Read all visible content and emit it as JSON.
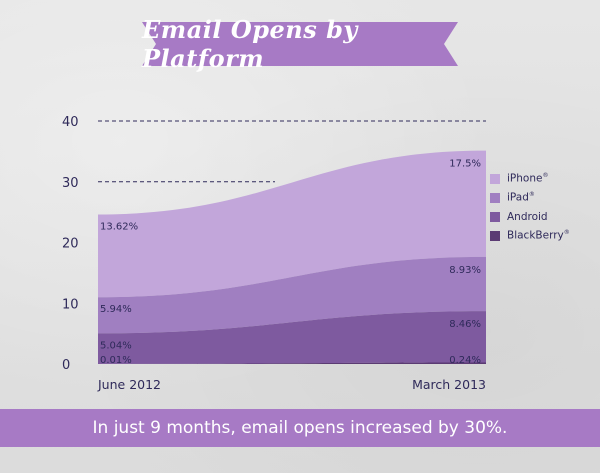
{
  "title": "Email Opens by Platform",
  "footer_text": "In just 9 months, email opens increased by 30%.",
  "colors": {
    "banner": "#a77ac5",
    "axis_text": "#2f2a5a",
    "iphone": "#c2a6da",
    "ipad": "#a07fc1",
    "android": "#7e5a9f",
    "blackberry": "#5b3b73"
  },
  "chart_data": {
    "type": "area",
    "stacked": true,
    "x": [
      "June 2012",
      "March 2013"
    ],
    "yticks": [
      0,
      10,
      20,
      30,
      40
    ],
    "ylim": [
      0,
      40
    ],
    "gridlines": "dashed at 30 and 40",
    "legend_position": "right",
    "series": [
      {
        "name": "BlackBerry®",
        "values": [
          0.01,
          0.24
        ],
        "labels": [
          "0.01%",
          "0.24%"
        ],
        "color": "#5b3b73"
      },
      {
        "name": "Android",
        "values": [
          5.04,
          8.46
        ],
        "labels": [
          "5.04%",
          "8.46%"
        ],
        "color": "#7e5a9f"
      },
      {
        "name": "iPad®",
        "values": [
          5.94,
          8.93
        ],
        "labels": [
          "5.94%",
          "8.93%"
        ],
        "color": "#a07fc1"
      },
      {
        "name": "iPhone®",
        "values": [
          13.62,
          17.5
        ],
        "labels": [
          "13.62%",
          "17.5%"
        ],
        "color": "#c2a6da"
      }
    ],
    "legend_order": [
      {
        "label": "iPhone",
        "mark": "®",
        "color": "#c2a6da"
      },
      {
        "label": "iPad",
        "mark": "®",
        "color": "#a07fc1"
      },
      {
        "label": "Android",
        "mark": "",
        "color": "#7e5a9f"
      },
      {
        "label": "BlackBerry",
        "mark": "®",
        "color": "#5b3b73"
      }
    ]
  }
}
